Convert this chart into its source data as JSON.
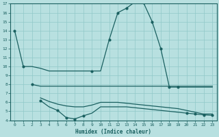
{
  "xlabel": "Humidex (Indice chaleur)",
  "xlim": [
    -0.5,
    23.5
  ],
  "ylim": [
    4,
    17
  ],
  "yticks": [
    4,
    5,
    6,
    7,
    8,
    9,
    10,
    11,
    12,
    13,
    14,
    15,
    16,
    17
  ],
  "xticks": [
    0,
    1,
    2,
    3,
    4,
    5,
    6,
    7,
    8,
    9,
    10,
    11,
    12,
    13,
    14,
    15,
    16,
    17,
    18,
    19,
    20,
    21,
    22,
    23
  ],
  "bg_color": "#b8e0e0",
  "line_color": "#1a6060",
  "grid_color": "#90c8c8",
  "line1_x": [
    0,
    1,
    2,
    3,
    4,
    5,
    6,
    7,
    8,
    9,
    10,
    11,
    12,
    13,
    14,
    15,
    16,
    17,
    18,
    19,
    20,
    21,
    22,
    23
  ],
  "line1_y": [
    14,
    10,
    10,
    9.8,
    9.5,
    9.5,
    9.5,
    9.5,
    9.5,
    9.5,
    9.5,
    13,
    16,
    16.5,
    17.2,
    17.1,
    15.0,
    12.0,
    7.7,
    7.7,
    7.7,
    7.7,
    7.7,
    7.7
  ],
  "line2_x": [
    2,
    3,
    4,
    5,
    6,
    7,
    8,
    9,
    10,
    11,
    12,
    13,
    14,
    15,
    16,
    17,
    18,
    19,
    20,
    21,
    22,
    23
  ],
  "line2_y": [
    8.0,
    7.8,
    7.8,
    7.8,
    7.8,
    7.8,
    7.8,
    7.8,
    7.8,
    7.8,
    7.8,
    7.8,
    7.8,
    7.8,
    7.8,
    7.8,
    7.8,
    7.8,
    7.8,
    7.8,
    7.8,
    7.8
  ],
  "line3_x": [
    3,
    4,
    5,
    6,
    7,
    8,
    9,
    10,
    11,
    12,
    13,
    14,
    15,
    16,
    17,
    18,
    19,
    20,
    21,
    22,
    23
  ],
  "line3_y": [
    6.5,
    6.1,
    5.8,
    5.6,
    5.5,
    5.5,
    5.7,
    6.0,
    6.0,
    6.0,
    5.9,
    5.8,
    5.7,
    5.6,
    5.5,
    5.4,
    5.3,
    5.1,
    4.9,
    4.7,
    4.7
  ],
  "line4_x": [
    3,
    4,
    5,
    6,
    7,
    8,
    9,
    10,
    11,
    12,
    13,
    14,
    15,
    16,
    17,
    18,
    19,
    20,
    21,
    22,
    23
  ],
  "line4_y": [
    6.2,
    5.5,
    5.1,
    4.3,
    4.15,
    4.5,
    4.8,
    5.5,
    5.5,
    5.5,
    5.5,
    5.4,
    5.3,
    5.2,
    5.1,
    5.0,
    4.9,
    4.8,
    4.7,
    4.6,
    4.55
  ],
  "markers1_x": [
    0,
    1,
    9,
    11,
    12,
    13,
    14,
    15,
    16,
    17,
    18,
    19
  ],
  "markers1_y": [
    14,
    10,
    9.5,
    13,
    16,
    16.5,
    17.2,
    17.1,
    15.0,
    12.0,
    7.7,
    7.7
  ],
  "markers2_x": [
    2
  ],
  "markers2_y": [
    8.0
  ],
  "markers4_x": [
    3,
    5,
    6,
    7,
    8,
    20,
    21,
    22,
    23
  ],
  "markers4_y": [
    6.2,
    5.1,
    4.3,
    4.15,
    4.5,
    4.8,
    4.7,
    4.6,
    4.55
  ]
}
